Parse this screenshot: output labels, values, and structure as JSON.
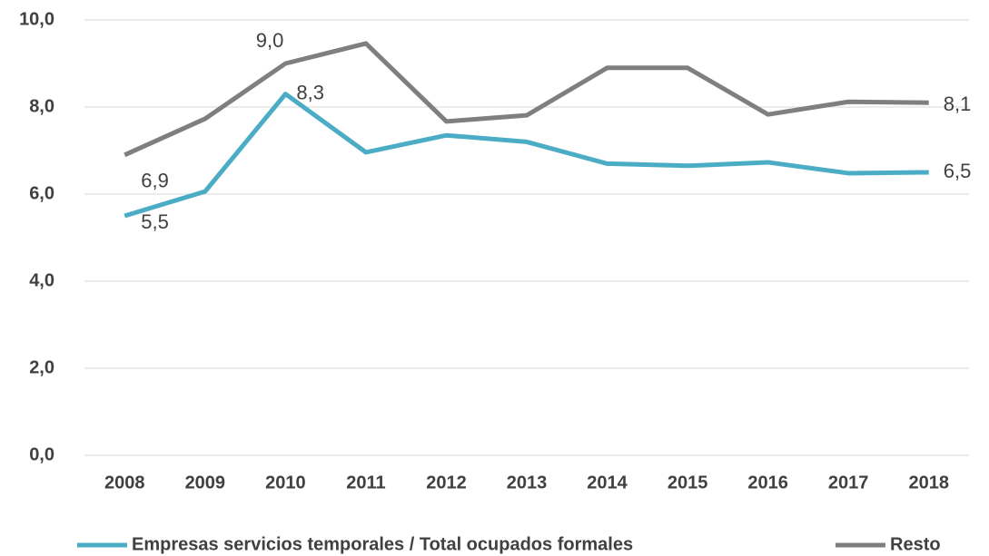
{
  "chart_data": {
    "type": "line",
    "categories": [
      "2008",
      "2009",
      "2010",
      "2011",
      "2012",
      "2013",
      "2014",
      "2015",
      "2016",
      "2017",
      "2018"
    ],
    "series": [
      {
        "name": "Empresas servicios temporales / Total ocupados formales",
        "color": "#4bacc6",
        "values": [
          5.5,
          6.06,
          8.3,
          6.96,
          7.35,
          7.2,
          6.7,
          6.65,
          6.73,
          6.48,
          6.5
        ],
        "value_labels": [
          "5,5",
          null,
          "8,3",
          null,
          null,
          null,
          null,
          null,
          null,
          null,
          "6,5"
        ]
      },
      {
        "name": "Resto",
        "color": "#7f7f7f",
        "values": [
          6.9,
          7.73,
          9.0,
          9.46,
          7.67,
          7.81,
          8.9,
          8.9,
          7.83,
          8.12,
          8.1
        ],
        "value_labels": [
          "6,9",
          null,
          "9,0",
          null,
          null,
          null,
          null,
          null,
          null,
          null,
          "8,1"
        ]
      }
    ],
    "ylim": [
      0,
      10
    ],
    "yticks": [
      {
        "value": 0,
        "label": "0,0"
      },
      {
        "value": 2,
        "label": "2,0"
      },
      {
        "value": 4,
        "label": "4,0"
      },
      {
        "value": 6,
        "label": "6,0"
      },
      {
        "value": 8,
        "label": "8,0"
      },
      {
        "value": 10,
        "label": "10,0"
      }
    ],
    "grid": true,
    "legend": "bottom"
  }
}
